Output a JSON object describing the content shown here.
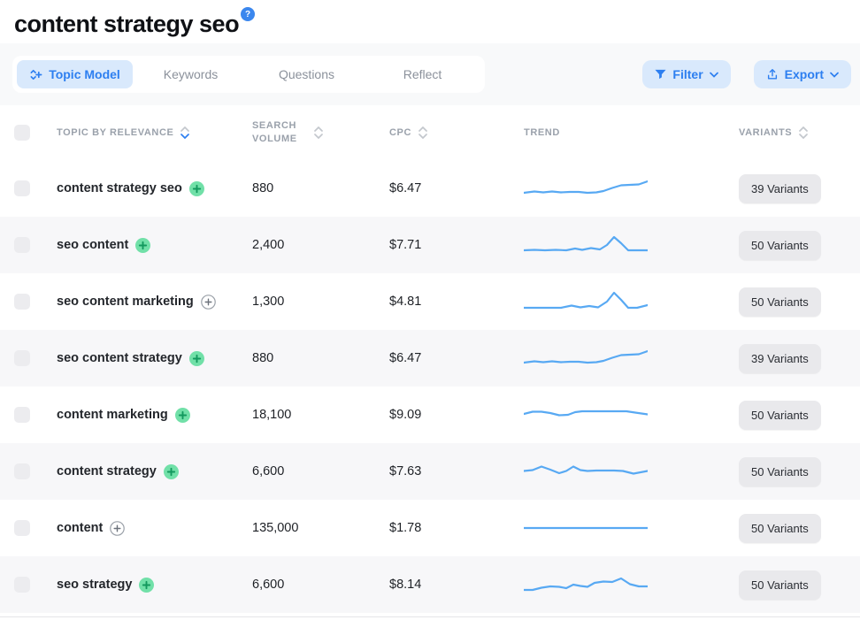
{
  "header": {
    "title": "content strategy seo",
    "help_badge": "?"
  },
  "tabs": [
    {
      "label": "Topic Model",
      "active": true
    },
    {
      "label": "Keywords",
      "active": false
    },
    {
      "label": "Questions",
      "active": false
    },
    {
      "label": "Reflect",
      "active": false
    }
  ],
  "toolbar": {
    "filter_label": "Filter",
    "export_label": "Export"
  },
  "table": {
    "columns": {
      "topic": "Topic by relevance",
      "volume": "Search Volume",
      "cpc": "CPC",
      "trend": "Trend",
      "variants": "Variants"
    },
    "sorted_column": "topic",
    "rows": [
      {
        "keyword": "content strategy seo",
        "added": true,
        "volume": "880",
        "cpc": "$6.47",
        "variants": "39 Variants",
        "trend": [
          [
            0,
            19
          ],
          [
            12,
            17.5
          ],
          [
            22,
            18.5
          ],
          [
            32,
            17.5
          ],
          [
            42,
            18.5
          ],
          [
            52,
            18
          ],
          [
            62,
            18
          ],
          [
            72,
            19
          ],
          [
            82,
            18.5
          ],
          [
            90,
            17
          ],
          [
            100,
            13.5
          ],
          [
            110,
            10.5
          ],
          [
            120,
            10
          ],
          [
            130,
            9.5
          ],
          [
            140,
            6
          ]
        ]
      },
      {
        "keyword": "seo content",
        "added": true,
        "volume": "2,400",
        "cpc": "$7.71",
        "variants": "50 Variants",
        "trend": [
          [
            0,
            20
          ],
          [
            12,
            19.5
          ],
          [
            24,
            20
          ],
          [
            36,
            19.5
          ],
          [
            48,
            20
          ],
          [
            58,
            18
          ],
          [
            66,
            19.5
          ],
          [
            76,
            17.5
          ],
          [
            86,
            19
          ],
          [
            94,
            14
          ],
          [
            102,
            5
          ],
          [
            110,
            12
          ],
          [
            118,
            20
          ],
          [
            130,
            20
          ],
          [
            140,
            20
          ]
        ]
      },
      {
        "keyword": "seo content marketing",
        "added": false,
        "volume": "1,300",
        "cpc": "$4.81",
        "variants": "50 Variants",
        "trend": [
          [
            0,
            21
          ],
          [
            14,
            21
          ],
          [
            28,
            21
          ],
          [
            42,
            21
          ],
          [
            54,
            18.5
          ],
          [
            64,
            20.5
          ],
          [
            74,
            19
          ],
          [
            84,
            20.5
          ],
          [
            94,
            14
          ],
          [
            102,
            4
          ],
          [
            110,
            12
          ],
          [
            118,
            21
          ],
          [
            128,
            21
          ],
          [
            140,
            18
          ]
        ]
      },
      {
        "keyword": "seo content strategy",
        "added": true,
        "volume": "880",
        "cpc": "$6.47",
        "variants": "39 Variants",
        "trend": [
          [
            0,
            19
          ],
          [
            12,
            17.5
          ],
          [
            22,
            18.5
          ],
          [
            32,
            17.5
          ],
          [
            42,
            18.5
          ],
          [
            52,
            18
          ],
          [
            62,
            18
          ],
          [
            72,
            19
          ],
          [
            82,
            18.5
          ],
          [
            90,
            17
          ],
          [
            100,
            13.5
          ],
          [
            110,
            10.5
          ],
          [
            120,
            10
          ],
          [
            130,
            9.5
          ],
          [
            140,
            6
          ]
        ]
      },
      {
        "keyword": "content marketing",
        "added": true,
        "volume": "18,100",
        "cpc": "$9.09",
        "variants": "50 Variants",
        "trend": [
          [
            0,
            13
          ],
          [
            10,
            10.5
          ],
          [
            20,
            10.5
          ],
          [
            30,
            12
          ],
          [
            40,
            14.5
          ],
          [
            50,
            14
          ],
          [
            58,
            11
          ],
          [
            66,
            10
          ],
          [
            76,
            10
          ],
          [
            86,
            10
          ],
          [
            96,
            10
          ],
          [
            106,
            10
          ],
          [
            116,
            10
          ],
          [
            126,
            11.5
          ],
          [
            140,
            13.5
          ]
        ]
      },
      {
        "keyword": "content strategy",
        "added": true,
        "volume": "6,600",
        "cpc": "$7.63",
        "variants": "50 Variants",
        "trend": [
          [
            0,
            13.5
          ],
          [
            10,
            12.5
          ],
          [
            20,
            8.5
          ],
          [
            30,
            12
          ],
          [
            40,
            16
          ],
          [
            48,
            13.5
          ],
          [
            56,
            8.5
          ],
          [
            64,
            12.5
          ],
          [
            72,
            13.5
          ],
          [
            82,
            13
          ],
          [
            92,
            13
          ],
          [
            102,
            13
          ],
          [
            112,
            13.5
          ],
          [
            124,
            16.5
          ],
          [
            140,
            13.5
          ]
        ]
      },
      {
        "keyword": "content",
        "added": false,
        "volume": "135,000",
        "cpc": "$1.78",
        "variants": "50 Variants",
        "trend": [
          [
            0,
            14
          ],
          [
            140,
            14
          ]
        ]
      },
      {
        "keyword": "seo strategy",
        "added": true,
        "volume": "6,600",
        "cpc": "$8.14",
        "variants": "50 Variants",
        "trend": [
          [
            0,
            20
          ],
          [
            10,
            20
          ],
          [
            20,
            17.5
          ],
          [
            30,
            16
          ],
          [
            40,
            16.5
          ],
          [
            48,
            18
          ],
          [
            56,
            14
          ],
          [
            64,
            15.5
          ],
          [
            72,
            16.5
          ],
          [
            80,
            12
          ],
          [
            90,
            10.5
          ],
          [
            100,
            11
          ],
          [
            110,
            7
          ],
          [
            120,
            13.5
          ],
          [
            130,
            16
          ],
          [
            140,
            16
          ]
        ]
      }
    ]
  },
  "colors": {
    "accent_blue": "#2d7ff0",
    "accent_light_blue": "#d9e9fc",
    "sparkline_blue": "#58a9f3",
    "green_light": "#71e0a8",
    "green_dark": "#13995e",
    "alt_row": "#f7f7f9"
  }
}
